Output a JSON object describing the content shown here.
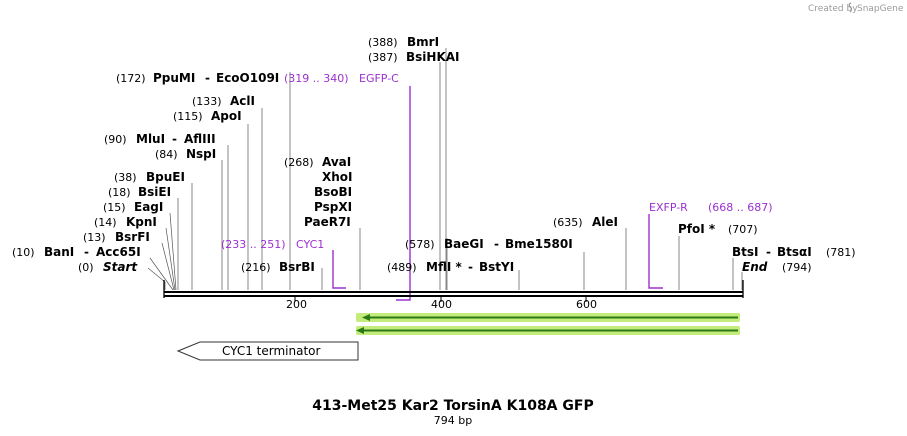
{
  "credit": {
    "prefix": "Created by",
    "brand": "SnapGene"
  },
  "title": "413-Met25 Kar2 TorsinA K108A GFP",
  "length_label": "794 bp",
  "total_bp": 794,
  "ruler_ticks": [
    {
      "bp": 200,
      "label": "200"
    },
    {
      "bp": 400,
      "label": "400"
    },
    {
      "bp": 600,
      "label": "600"
    }
  ],
  "sites": [
    {
      "pos_label": "(388)",
      "names": [
        "BmrI"
      ],
      "bp": 388
    },
    {
      "pos_label": "(387)",
      "names": [
        "BsiHKAI"
      ],
      "bp": 387
    },
    {
      "pos_label": "(172)",
      "names": [
        "PpuMI",
        "EcoO109I"
      ],
      "bp": 172
    },
    {
      "pos_label": "(133)",
      "names": [
        "AclI"
      ],
      "bp": 133
    },
    {
      "pos_label": "(115)",
      "names": [
        "ApoI"
      ],
      "bp": 115
    },
    {
      "pos_label": "(90)",
      "names": [
        "MluI",
        "AflIII"
      ],
      "bp": 90
    },
    {
      "pos_label": "(84)",
      "names": [
        "NspI"
      ],
      "bp": 84
    },
    {
      "pos_label": "(38)",
      "names": [
        "BpuEI"
      ],
      "bp": 38
    },
    {
      "pos_label": "(18)",
      "names": [
        "BsiEI"
      ],
      "bp": 18
    },
    {
      "pos_label": "(15)",
      "names": [
        "EagI"
      ],
      "bp": 15
    },
    {
      "pos_label": "(14)",
      "names": [
        "KpnI"
      ],
      "bp": 14
    },
    {
      "pos_label": "(13)",
      "names": [
        "BsrFI"
      ],
      "bp": 13
    },
    {
      "pos_label": "(10)",
      "names": [
        "BanI",
        "Acc65I"
      ],
      "bp": 10
    },
    {
      "pos_label": "(0)",
      "names": [
        "Start"
      ],
      "bp": 0,
      "italic": true
    },
    {
      "pos_label": "(268)",
      "names": [
        "AvaI",
        "XhoI",
        "BsoBI",
        "PspXI",
        "PaeR7I"
      ],
      "bp": 268
    },
    {
      "pos_label": "(216)",
      "names": [
        "BsrBI"
      ],
      "bp": 216
    },
    {
      "pos_label": "(578)",
      "names": [
        "BaeGI",
        "Bme1580I"
      ],
      "bp": 578
    },
    {
      "pos_label": "(489)",
      "names": [
        "MflI *",
        "BstYI"
      ],
      "bp": 489
    },
    {
      "pos_label": "(635)",
      "names": [
        "AleI"
      ],
      "bp": 635
    },
    {
      "pos_label": "(707)",
      "names": [
        "PfoI *"
      ],
      "bp": 707
    },
    {
      "pos_label": "(781)",
      "names": [
        "BtsI",
        "BtsαI"
      ],
      "bp": 781
    },
    {
      "pos_label": "(794)",
      "names": [
        "End"
      ],
      "bp": 794,
      "italic": true
    }
  ],
  "primers": [
    {
      "range_label": "(319 .. 340)",
      "name": "EGFP-C"
    },
    {
      "range_label": "(233 .. 251)",
      "name": "CYC1"
    },
    {
      "range_label": "(668 .. 687)",
      "name": "EXFP-R"
    }
  ],
  "features": [
    {
      "name": "CYC1 terminator",
      "direction": "reverse"
    }
  ],
  "colors": {
    "primer": "#9b30d0",
    "orf_arrow": "#2a7a14",
    "orf_glow": "#c4ec7c",
    "backbone": "#000000"
  }
}
